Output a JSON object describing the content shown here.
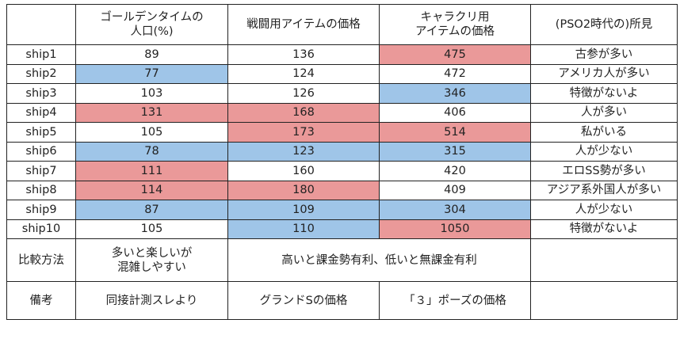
{
  "colors": {
    "high": "#ea9999",
    "low": "#9fc5e8"
  },
  "headers": [
    "",
    "ゴールデンタイムの\n人口(%)",
    "戦闘用アイテムの価格",
    "キャラクリ用\nアイテムの価格",
    "(PSO2時代の)所見"
  ],
  "rows": [
    {
      "ship": "ship1",
      "pop": "89",
      "battle": "136",
      "chara": "475",
      "note": "古参が多い",
      "marks": [
        "",
        "",
        "hi"
      ]
    },
    {
      "ship": "ship2",
      "pop": "77",
      "battle": "124",
      "chara": "472",
      "note": "アメリカ人が多い",
      "marks": [
        "lo",
        "",
        ""
      ]
    },
    {
      "ship": "ship3",
      "pop": "103",
      "battle": "126",
      "chara": "346",
      "note": "特徴がないよ",
      "marks": [
        "",
        "",
        "lo"
      ]
    },
    {
      "ship": "ship4",
      "pop": "131",
      "battle": "168",
      "chara": "406",
      "note": "人が多い",
      "marks": [
        "hi",
        "hi",
        ""
      ]
    },
    {
      "ship": "ship5",
      "pop": "105",
      "battle": "173",
      "chara": "514",
      "note": "私がいる",
      "marks": [
        "",
        "hi",
        "hi"
      ]
    },
    {
      "ship": "ship6",
      "pop": "78",
      "battle": "123",
      "chara": "315",
      "note": "人が少ない",
      "marks": [
        "lo",
        "lo",
        "lo"
      ]
    },
    {
      "ship": "ship7",
      "pop": "111",
      "battle": "160",
      "chara": "420",
      "note": "エロSS勢が多い",
      "marks": [
        "hi",
        "",
        ""
      ]
    },
    {
      "ship": "ship8",
      "pop": "114",
      "battle": "180",
      "chara": "409",
      "note": "アジア系外国人が多い",
      "marks": [
        "hi",
        "hi",
        ""
      ]
    },
    {
      "ship": "ship9",
      "pop": "87",
      "battle": "109",
      "chara": "304",
      "note": "人が少ない",
      "marks": [
        "lo",
        "lo",
        "lo"
      ]
    },
    {
      "ship": "ship10",
      "pop": "105",
      "battle": "110",
      "chara": "1050",
      "note": "特徴がないよ",
      "marks": [
        "",
        "lo",
        "hi"
      ]
    }
  ],
  "comparison": {
    "label": "比較方法",
    "pop": "多いと楽しいが\n混雑しやすい",
    "price": "高いと課金勢有利、低いと無課金有利"
  },
  "remarks": {
    "label": "備考",
    "pop": "同接計測スレより",
    "battle": "グランドSの価格",
    "chara": "「３」ポーズの価格"
  }
}
